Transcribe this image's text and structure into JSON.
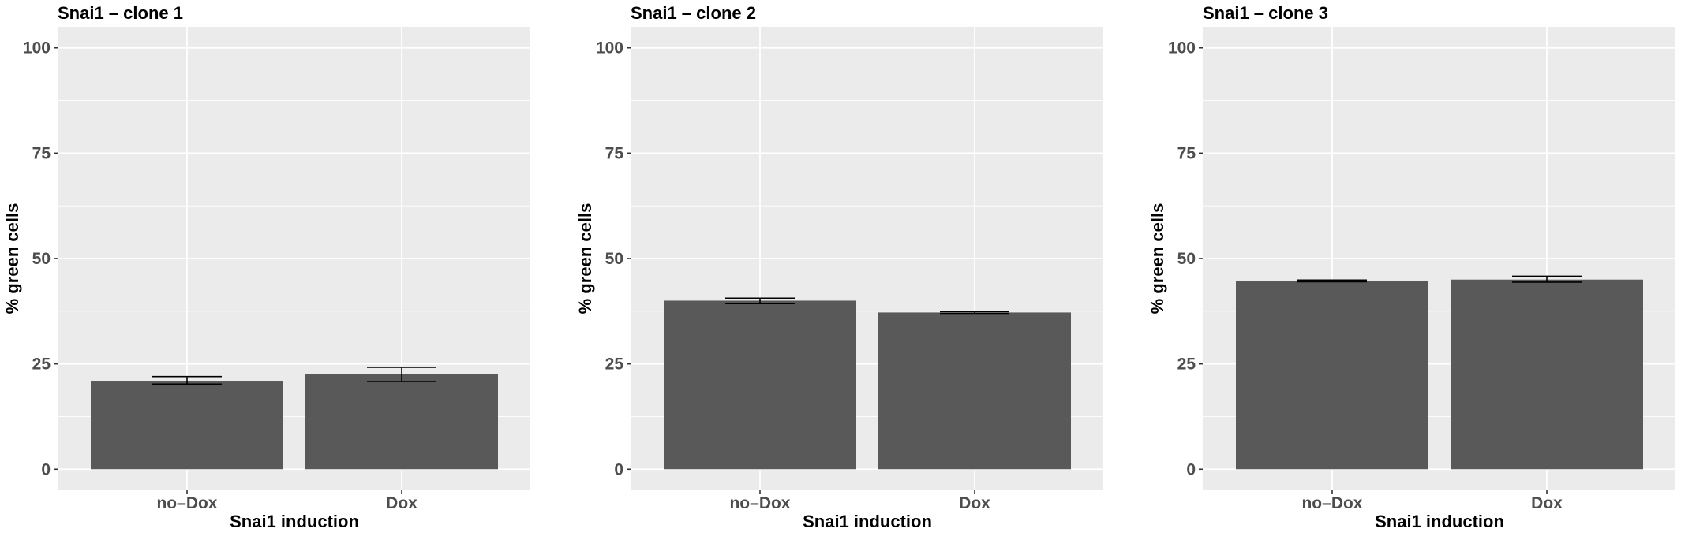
{
  "chart_data": [
    {
      "type": "bar",
      "title": "Snai1 – clone 1",
      "xlabel": "Snai1 induction",
      "ylabel": "% green cells",
      "categories": [
        "no–Dox",
        "Dox"
      ],
      "values": [
        21.0,
        22.5
      ],
      "error_bars": [
        {
          "low": 20.2,
          "high": 22.0
        },
        {
          "low": 20.8,
          "high": 24.2
        }
      ],
      "ylim": [
        -5,
        105
      ],
      "yticks": [
        0,
        25,
        50,
        75,
        100
      ],
      "ytick_labels": [
        "0",
        "25",
        "50",
        "75",
        "100"
      ],
      "grid": true,
      "colors": {
        "bar": "#595959",
        "panel_bg": "#ebebeb",
        "grid": "#ffffff",
        "error_bar": "#000000"
      }
    },
    {
      "type": "bar",
      "title": "Snai1 – clone 2",
      "xlabel": "Snai1 induction",
      "ylabel": "% green cells",
      "categories": [
        "no–Dox",
        "Dox"
      ],
      "values": [
        40.0,
        37.2
      ],
      "error_bars": [
        {
          "low": 39.3,
          "high": 40.6
        },
        {
          "low": 37.0,
          "high": 37.4
        }
      ],
      "ylim": [
        -5,
        105
      ],
      "yticks": [
        0,
        25,
        50,
        75,
        100
      ],
      "ytick_labels": [
        "0",
        "25",
        "50",
        "75",
        "100"
      ],
      "grid": true,
      "colors": {
        "bar": "#595959",
        "panel_bg": "#ebebeb",
        "grid": "#ffffff",
        "error_bar": "#000000"
      }
    },
    {
      "type": "bar",
      "title": "Snai1 – clone 3",
      "xlabel": "Snai1 induction",
      "ylabel": "% green cells",
      "categories": [
        "no–Dox",
        "Dox"
      ],
      "values": [
        44.7,
        45.0
      ],
      "error_bars": [
        {
          "low": 44.5,
          "high": 44.9
        },
        {
          "low": 44.4,
          "high": 45.8
        }
      ],
      "ylim": [
        -5,
        105
      ],
      "yticks": [
        0,
        25,
        50,
        75,
        100
      ],
      "ytick_labels": [
        "0",
        "25",
        "50",
        "75",
        "100"
      ],
      "grid": true,
      "colors": {
        "bar": "#595959",
        "panel_bg": "#ebebeb",
        "grid": "#ffffff",
        "error_bar": "#000000"
      }
    }
  ]
}
